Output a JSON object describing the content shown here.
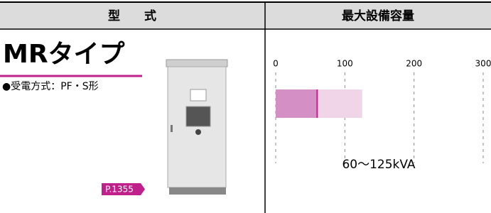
{
  "header": {
    "col1": "型　　式",
    "col2": "最大設備容量"
  },
  "product": {
    "name": "MRタイプ",
    "spec": "●受電方式：PF・S形",
    "page_ref": "P.1355"
  },
  "capacity": {
    "type": "range-bar",
    "xlim": [
      0,
      300
    ],
    "xticks": [
      0,
      100,
      200,
      300
    ],
    "values": [
      60,
      125
    ],
    "label": "60〜125kVA",
    "colors": [
      "#d48fc4",
      "#f0d4e8"
    ],
    "marker_color": "#c0208a"
  }
}
